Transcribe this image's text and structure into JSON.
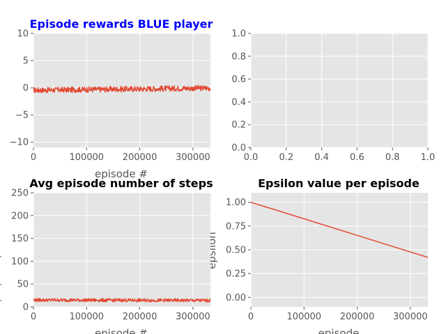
{
  "colors": {
    "series": "#e24a33",
    "panel_bg": "#e5e5e5",
    "grid": "#ffffff",
    "tick_text": "#555555",
    "blue_title": "#0000ff",
    "black_title": "#000000"
  },
  "chart_data": [
    {
      "id": "top-left",
      "type": "line",
      "title": "Episode rewards BLUE player",
      "title_color": "#0000ff",
      "xlabel": "episode #",
      "ylabel": "",
      "xlim": [
        0,
        333000
      ],
      "ylim": [
        -11,
        10
      ],
      "xticks": [
        0,
        100000,
        200000,
        300000
      ],
      "xtick_labels": [
        "0",
        "100000",
        "200000",
        "300000"
      ],
      "yticks": [
        -10,
        -5,
        0,
        5,
        10
      ],
      "ytick_labels": [
        "−10",
        "−5",
        "0",
        "5",
        "10"
      ],
      "grid": true,
      "series": [
        {
          "style": "noisy-band",
          "x": [
            0,
            333000
          ],
          "center": [
            -0.45,
            -0.05
          ],
          "amplitude": 0.5
        }
      ]
    },
    {
      "id": "top-right",
      "type": "line",
      "title": "",
      "xlabel": "",
      "ylabel": "",
      "xlim": [
        0,
        1
      ],
      "ylim": [
        0,
        1
      ],
      "xticks": [
        0,
        0.2,
        0.4,
        0.6,
        0.8,
        1.0
      ],
      "xtick_labels": [
        "0.0",
        "0.2",
        "0.4",
        "0.6",
        "0.8",
        "1.0"
      ],
      "yticks": [
        0,
        0.2,
        0.4,
        0.6,
        0.8,
        1.0
      ],
      "ytick_labels": [
        "0.0",
        "0.2",
        "0.4",
        "0.6",
        "0.8",
        "1.0"
      ],
      "grid": true,
      "series": []
    },
    {
      "id": "bottom-left",
      "type": "line",
      "title": "Avg episode number of steps",
      "title_color": "#000000",
      "xlabel": "episode #",
      "ylabel": "",
      "xlim": [
        0,
        333000
      ],
      "ylim": [
        0,
        250
      ],
      "xticks": [
        0,
        100000,
        200000,
        300000
      ],
      "xtick_labels": [
        "0",
        "100000",
        "200000",
        "300000"
      ],
      "yticks": [
        0,
        50,
        100,
        150,
        200,
        250
      ],
      "ytick_labels": [
        "0",
        "50",
        "100",
        "150",
        "200",
        "250"
      ],
      "grid": true,
      "series": [
        {
          "style": "noisy-band",
          "x": [
            0,
            333000
          ],
          "center": [
            15,
            14
          ],
          "amplitude": 3.5
        }
      ]
    },
    {
      "id": "bottom-right",
      "type": "line",
      "title": "Epsilon value per episode",
      "title_color": "#000000",
      "xlabel": "episode",
      "ylabel": "epsilon",
      "xlim": [
        0,
        333000
      ],
      "ylim": [
        -0.1,
        1.1
      ],
      "xticks": [
        0,
        100000,
        200000,
        300000
      ],
      "xtick_labels": [
        "0",
        "100000",
        "200000",
        "300000"
      ],
      "yticks": [
        0,
        0.25,
        0.5,
        0.75,
        1.0
      ],
      "ytick_labels": [
        "0.00",
        "0.25",
        "0.50",
        "0.75",
        "1.00"
      ],
      "grid": true,
      "series": [
        {
          "style": "line",
          "x": [
            0,
            333000
          ],
          "y": [
            1.0,
            0.42
          ]
        }
      ]
    }
  ]
}
